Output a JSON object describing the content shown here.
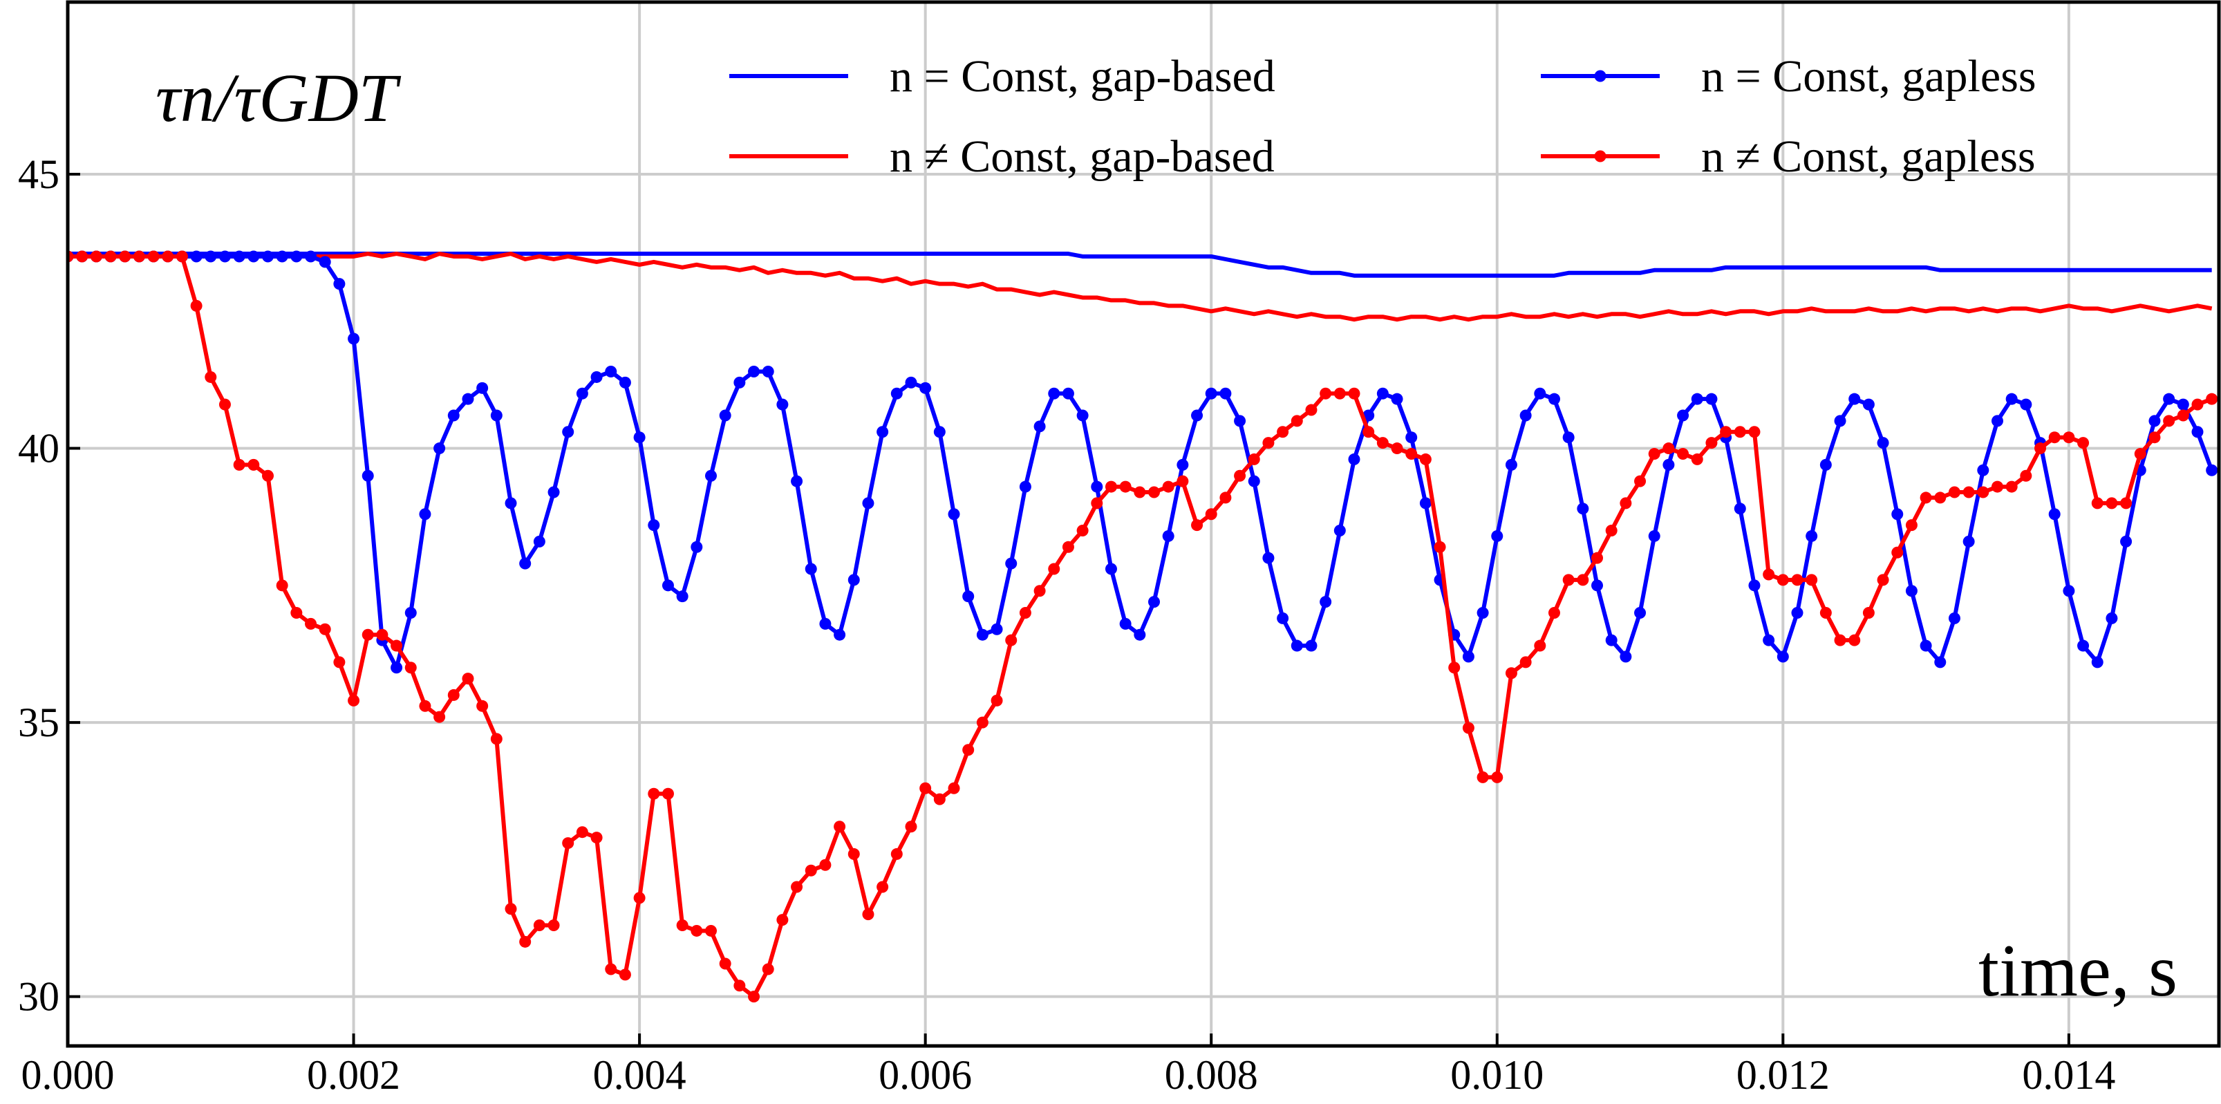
{
  "chart_data": {
    "type": "line",
    "y_label": "τn/τGDT",
    "x_label": "time, s",
    "xlim": [
      0,
      0.01505
    ],
    "ylim": [
      29.1,
      48.14
    ],
    "xticks": [
      {
        "value": 0,
        "label": "0.000"
      },
      {
        "value": 0.002,
        "label": "0.002"
      },
      {
        "value": 0.004,
        "label": "0.004"
      },
      {
        "value": 0.006,
        "label": "0.006"
      },
      {
        "value": 0.008,
        "label": "0.008"
      },
      {
        "value": 0.01,
        "label": "0.010"
      },
      {
        "value": 0.012,
        "label": "0.012"
      },
      {
        "value": 0.014,
        "label": "0.014"
      }
    ],
    "yticks": [
      30,
      35,
      40,
      45
    ],
    "grid": true,
    "x": [
      0,
      0.0001,
      0.0002,
      0.0003,
      0.0004,
      0.0005,
      0.0006,
      0.0007,
      0.0008,
      0.0009,
      0.001,
      0.0011,
      0.0012,
      0.0013,
      0.0014,
      0.0015,
      0.0016,
      0.0017,
      0.0018,
      0.0019,
      0.002,
      0.0021,
      0.0022,
      0.0023,
      0.0024,
      0.0025,
      0.0026,
      0.0027,
      0.0028,
      0.0029,
      0.003,
      0.0031,
      0.0032,
      0.0033,
      0.0034,
      0.0035,
      0.0036,
      0.0037,
      0.0038,
      0.0039,
      0.004,
      0.0041,
      0.0042,
      0.0043,
      0.0044,
      0.0045,
      0.0046,
      0.0047,
      0.0048,
      0.0049,
      0.005,
      0.0051,
      0.0052,
      0.0053,
      0.0054,
      0.0055,
      0.0056,
      0.0057,
      0.0058,
      0.0059,
      0.006,
      0.0061,
      0.0062,
      0.0063,
      0.0064,
      0.0065,
      0.0066,
      0.0067,
      0.0068,
      0.0069,
      0.007,
      0.0071,
      0.0072,
      0.0073,
      0.0074,
      0.0075,
      0.0076,
      0.0077,
      0.0078,
      0.0079,
      0.008,
      0.0081,
      0.0082,
      0.0083,
      0.0084,
      0.0085,
      0.0086,
      0.0087,
      0.0088,
      0.0089,
      0.009,
      0.0091,
      0.0092,
      0.0093,
      0.0094,
      0.0095,
      0.0096,
      0.0097,
      0.0098,
      0.0099,
      0.01,
      0.0101,
      0.0102,
      0.0103,
      0.0104,
      0.0105,
      0.0106,
      0.0107,
      0.0108,
      0.0109,
      0.011,
      0.0111,
      0.0112,
      0.0113,
      0.0114,
      0.0115,
      0.0116,
      0.0117,
      0.0118,
      0.0119,
      0.012,
      0.0121,
      0.0122,
      0.0123,
      0.0124,
      0.0125,
      0.0126,
      0.0127,
      0.0128,
      0.0129,
      0.013,
      0.0131,
      0.0132,
      0.0133,
      0.0134,
      0.0135,
      0.0136,
      0.0137,
      0.0138,
      0.0139,
      0.014,
      0.0141,
      0.0142,
      0.0143,
      0.0144,
      0.0145,
      0.0146,
      0.0147,
      0.0148,
      0.0149,
      0.015
    ],
    "series": [
      {
        "name": "n = Const, gap-based",
        "color": "#0000ff",
        "markers": false,
        "values": [
          43.55,
          43.55,
          43.55,
          43.55,
          43.55,
          43.55,
          43.55,
          43.55,
          43.55,
          43.55,
          43.55,
          43.55,
          43.55,
          43.55,
          43.55,
          43.55,
          43.55,
          43.55,
          43.55,
          43.55,
          43.55,
          43.55,
          43.55,
          43.55,
          43.55,
          43.55,
          43.55,
          43.55,
          43.55,
          43.55,
          43.55,
          43.55,
          43.55,
          43.55,
          43.55,
          43.55,
          43.55,
          43.55,
          43.55,
          43.55,
          43.55,
          43.55,
          43.55,
          43.55,
          43.55,
          43.55,
          43.55,
          43.55,
          43.55,
          43.55,
          43.55,
          43.55,
          43.55,
          43.55,
          43.55,
          43.55,
          43.55,
          43.55,
          43.55,
          43.55,
          43.55,
          43.55,
          43.55,
          43.55,
          43.55,
          43.55,
          43.55,
          43.55,
          43.55,
          43.55,
          43.55,
          43.5,
          43.5,
          43.5,
          43.5,
          43.5,
          43.5,
          43.5,
          43.5,
          43.5,
          43.5,
          43.45,
          43.4,
          43.35,
          43.3,
          43.3,
          43.25,
          43.2,
          43.2,
          43.2,
          43.15,
          43.15,
          43.15,
          43.15,
          43.15,
          43.15,
          43.15,
          43.15,
          43.15,
          43.15,
          43.15,
          43.15,
          43.15,
          43.15,
          43.15,
          43.2,
          43.2,
          43.2,
          43.2,
          43.2,
          43.2,
          43.25,
          43.25,
          43.25,
          43.25,
          43.25,
          43.3,
          43.3,
          43.3,
          43.3,
          43.3,
          43.3,
          43.3,
          43.3,
          43.3,
          43.3,
          43.3,
          43.3,
          43.3,
          43.3,
          43.3,
          43.25,
          43.25,
          43.25,
          43.25,
          43.25,
          43.25,
          43.25,
          43.25,
          43.25,
          43.25,
          43.25,
          43.25,
          43.25,
          43.25,
          43.25,
          43.25,
          43.25,
          43.25,
          43.25,
          43.25
        ]
      },
      {
        "name": "n ≠ Const, gap-based",
        "color": "#ff0000",
        "markers": false,
        "values": [
          43.5,
          43.5,
          43.5,
          43.5,
          43.5,
          43.5,
          43.5,
          43.5,
          43.5,
          43.5,
          43.5,
          43.5,
          43.5,
          43.5,
          43.5,
          43.5,
          43.5,
          43.5,
          43.5,
          43.5,
          43.5,
          43.55,
          43.5,
          43.55,
          43.5,
          43.45,
          43.55,
          43.5,
          43.5,
          43.45,
          43.5,
          43.55,
          43.45,
          43.5,
          43.45,
          43.5,
          43.45,
          43.4,
          43.45,
          43.4,
          43.35,
          43.4,
          43.35,
          43.3,
          43.35,
          43.3,
          43.3,
          43.25,
          43.3,
          43.2,
          43.25,
          43.2,
          43.2,
          43.15,
          43.2,
          43.1,
          43.1,
          43.05,
          43.1,
          43.0,
          43.05,
          43.0,
          43.0,
          42.95,
          43.0,
          42.9,
          42.9,
          42.85,
          42.8,
          42.85,
          42.8,
          42.75,
          42.75,
          42.7,
          42.7,
          42.65,
          42.65,
          42.6,
          42.6,
          42.55,
          42.5,
          42.55,
          42.5,
          42.45,
          42.5,
          42.45,
          42.4,
          42.45,
          42.4,
          42.4,
          42.35,
          42.4,
          42.4,
          42.35,
          42.4,
          42.4,
          42.35,
          42.4,
          42.35,
          42.4,
          42.4,
          42.45,
          42.4,
          42.4,
          42.45,
          42.4,
          42.45,
          42.4,
          42.45,
          42.45,
          42.4,
          42.45,
          42.5,
          42.45,
          42.45,
          42.5,
          42.45,
          42.5,
          42.5,
          42.45,
          42.5,
          42.5,
          42.55,
          42.5,
          42.5,
          42.5,
          42.55,
          42.5,
          42.5,
          42.55,
          42.5,
          42.55,
          42.55,
          42.5,
          42.55,
          42.5,
          42.55,
          42.55,
          42.5,
          42.55,
          42.6,
          42.55,
          42.55,
          42.5,
          42.55,
          42.6,
          42.55,
          42.5,
          42.55,
          42.6,
          42.55
        ]
      },
      {
        "name": "n = Const, gapless",
        "color": "#0000ff",
        "markers": true,
        "values": [
          43.5,
          43.5,
          43.5,
          43.5,
          43.5,
          43.5,
          43.5,
          43.5,
          43.5,
          43.5,
          43.5,
          43.5,
          43.5,
          43.5,
          43.5,
          43.5,
          43.5,
          43.5,
          43.4,
          43.0,
          42.0,
          39.5,
          36.5,
          36.0,
          37.0,
          38.8,
          40.0,
          40.6,
          40.9,
          41.1,
          40.6,
          39.0,
          37.9,
          38.3,
          39.2,
          40.3,
          41.0,
          41.3,
          41.4,
          41.2,
          40.2,
          38.6,
          37.5,
          37.3,
          38.2,
          39.5,
          40.6,
          41.2,
          41.4,
          41.4,
          40.8,
          39.4,
          37.8,
          36.8,
          36.6,
          37.6,
          39.0,
          40.3,
          41.0,
          41.2,
          41.1,
          40.3,
          38.8,
          37.3,
          36.6,
          36.7,
          37.9,
          39.3,
          40.4,
          41.0,
          41.0,
          40.6,
          39.3,
          37.8,
          36.8,
          36.6,
          37.2,
          38.4,
          39.7,
          40.6,
          41.0,
          41.0,
          40.5,
          39.4,
          38.0,
          36.9,
          36.4,
          36.4,
          37.2,
          38.5,
          39.8,
          40.6,
          41.0,
          40.9,
          40.2,
          39.0,
          37.6,
          36.6,
          36.2,
          37.0,
          38.4,
          39.7,
          40.6,
          41.0,
          40.9,
          40.2,
          38.9,
          37.5,
          36.5,
          36.2,
          37.0,
          38.4,
          39.7,
          40.6,
          40.9,
          40.9,
          40.2,
          38.9,
          37.5,
          36.5,
          36.2,
          37.0,
          38.4,
          39.7,
          40.5,
          40.9,
          40.8,
          40.1,
          38.8,
          37.4,
          36.4,
          36.1,
          36.9,
          38.3,
          39.6,
          40.5,
          40.9,
          40.8,
          40.1,
          38.8,
          37.4,
          36.4,
          36.1,
          36.9,
          38.3,
          39.6,
          40.5,
          40.9,
          40.8,
          40.3,
          39.6
        ]
      },
      {
        "name": "n ≠ Const, gapless",
        "color": "#ff0000",
        "markers": true,
        "values": [
          43.5,
          43.5,
          43.5,
          43.5,
          43.5,
          43.5,
          43.5,
          43.5,
          43.5,
          42.6,
          41.3,
          40.8,
          39.7,
          39.7,
          39.5,
          37.5,
          37.0,
          36.8,
          36.7,
          36.1,
          35.4,
          36.6,
          36.6,
          36.4,
          36.0,
          35.3,
          35.1,
          35.5,
          35.8,
          35.3,
          34.7,
          31.6,
          31.0,
          31.3,
          31.3,
          32.8,
          33.0,
          32.9,
          30.5,
          30.4,
          31.8,
          33.7,
          33.7,
          31.3,
          31.2,
          31.2,
          30.6,
          30.2,
          30.0,
          30.5,
          31.4,
          32.0,
          32.3,
          32.4,
          33.1,
          32.6,
          31.5,
          32.0,
          32.6,
          33.1,
          33.8,
          33.6,
          33.8,
          34.5,
          35.0,
          35.4,
          36.5,
          37.0,
          37.4,
          37.8,
          38.2,
          38.5,
          39.0,
          39.3,
          39.3,
          39.2,
          39.2,
          39.3,
          39.4,
          38.6,
          38.8,
          39.1,
          39.5,
          39.8,
          40.1,
          40.3,
          40.5,
          40.7,
          41.0,
          41.0,
          41.0,
          40.3,
          40.1,
          40.0,
          39.9,
          39.8,
          38.2,
          36.0,
          34.9,
          34.0,
          34.0,
          35.9,
          36.1,
          36.4,
          37.0,
          37.6,
          37.6,
          38.0,
          38.5,
          39.0,
          39.4,
          39.9,
          40.0,
          39.9,
          39.8,
          40.1,
          40.3,
          40.3,
          40.3,
          37.7,
          37.6,
          37.6,
          37.6,
          37.0,
          36.5,
          36.5,
          37.0,
          37.6,
          38.1,
          38.6,
          39.1,
          39.1,
          39.2,
          39.2,
          39.2,
          39.3,
          39.3,
          39.5,
          40.0,
          40.2,
          40.2,
          40.1,
          39.0,
          39.0,
          39.0,
          39.9,
          40.2,
          40.5,
          40.6,
          40.8,
          40.9
        ]
      }
    ]
  }
}
